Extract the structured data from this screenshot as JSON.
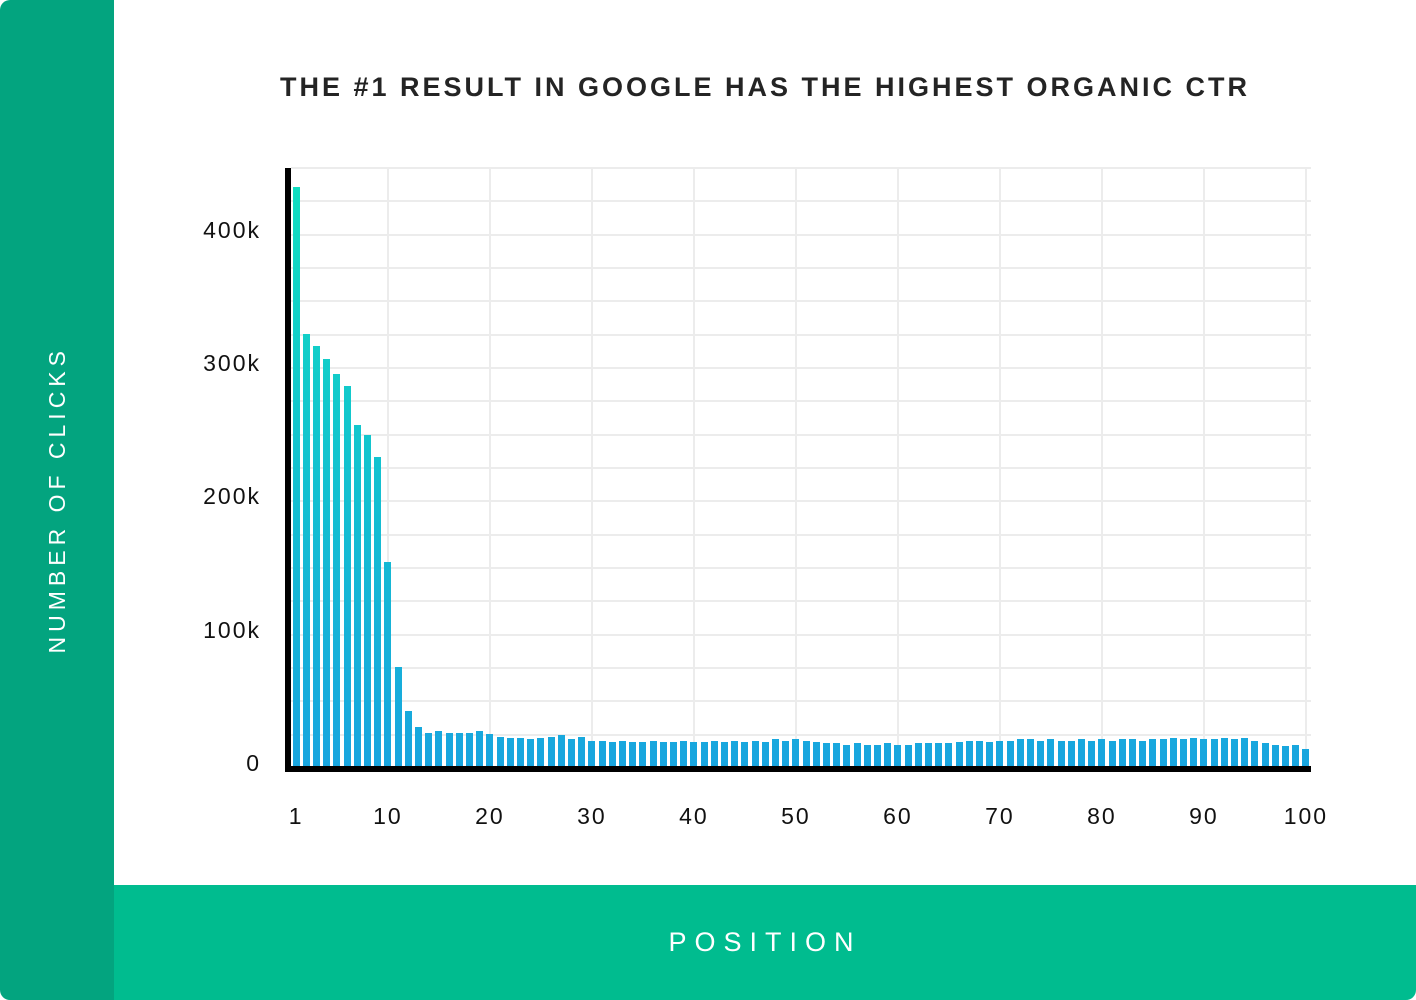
{
  "colors": {
    "sidebar_green": "#03A47F",
    "bottom_band_green": "#00BC8F",
    "bar_gradient_top": "#0FE0BF",
    "bar_gradient_bottom": "#18A5DF",
    "grid_line": "#ECECEC",
    "axis_black": "#000000",
    "title_text": "#242424",
    "tick_text": "#111111",
    "axis_title_text": "#FFFFFF"
  },
  "chart_data": {
    "type": "bar",
    "title": "THE #1 RESULT IN GOOGLE HAS THE HIGHEST ORGANIC CTR",
    "xlabel": "POSITION",
    "ylabel": "NUMBER OF CLICKS",
    "x_start": 1,
    "x_end": 100,
    "values": [
      434000,
      324000,
      315000,
      305000,
      294000,
      285000,
      256000,
      248000,
      232000,
      153000,
      74000,
      41000,
      29000,
      25000,
      26000,
      25000,
      25000,
      25000,
      26000,
      24000,
      22000,
      21000,
      21000,
      20000,
      21000,
      22000,
      23000,
      20000,
      22000,
      19000,
      19000,
      18000,
      19000,
      18000,
      18000,
      19000,
      18000,
      18000,
      19000,
      18000,
      18000,
      19000,
      18000,
      19000,
      18000,
      19000,
      18000,
      20000,
      19000,
      20000,
      19000,
      18000,
      17000,
      17000,
      16000,
      17000,
      16000,
      16000,
      17000,
      16000,
      16000,
      17000,
      17000,
      17000,
      17000,
      18000,
      19000,
      19000,
      18000,
      19000,
      19000,
      20000,
      20000,
      19000,
      20000,
      19000,
      19000,
      20000,
      19000,
      20000,
      19000,
      20000,
      20000,
      19000,
      20000,
      20000,
      21000,
      20000,
      21000,
      20000,
      20000,
      21000,
      20000,
      21000,
      19000,
      17000,
      16000,
      15000,
      16000,
      13000
    ],
    "y_tick_labels": [
      "0",
      "100k",
      "200k",
      "300k",
      "400k"
    ],
    "y_tick_values": [
      0,
      100000,
      200000,
      300000,
      400000
    ],
    "x_tick_labels": [
      "1",
      "10",
      "20",
      "30",
      "40",
      "50",
      "60",
      "70",
      "80",
      "90",
      "100"
    ],
    "x_tick_values": [
      1,
      10,
      20,
      30,
      40,
      50,
      60,
      70,
      80,
      90,
      100
    ],
    "ylim": [
      0,
      450000
    ],
    "y_grid_step": 25000,
    "x_grid_step": 10,
    "grid": true,
    "legend_position": "none"
  }
}
